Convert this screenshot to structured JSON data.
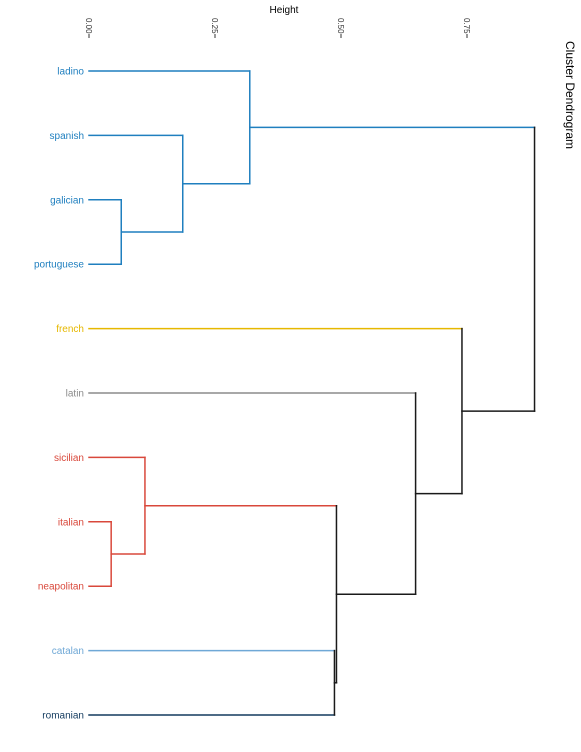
{
  "chart_data": {
    "type": "dendrogram",
    "title": "Cluster Dendrogram",
    "axis_title": "Height",
    "axis_ticks": [
      {
        "value": 0.0,
        "label": "0.00"
      },
      {
        "value": 0.25,
        "label": "0.25"
      },
      {
        "value": 0.5,
        "label": "0.50"
      },
      {
        "value": 0.75,
        "label": "0.75"
      }
    ],
    "height_range": [
      0,
      0.9
    ],
    "leaves": [
      {
        "name": "ladino",
        "color": "#1f7fbf"
      },
      {
        "name": "spanish",
        "color": "#1f7fbf"
      },
      {
        "name": "galician",
        "color": "#1f7fbf"
      },
      {
        "name": "portuguese",
        "color": "#1f7fbf"
      },
      {
        "name": "french",
        "color": "#e6b800"
      },
      {
        "name": "latin",
        "color": "#8c8c8c"
      },
      {
        "name": "sicilian",
        "color": "#d9483b"
      },
      {
        "name": "italian",
        "color": "#d9483b"
      },
      {
        "name": "neapolitan",
        "color": "#d9483b"
      },
      {
        "name": "catalan",
        "color": "#6fa8d6"
      },
      {
        "name": "romanian",
        "color": "#123a5e"
      }
    ],
    "merges": [
      {
        "left": "galician",
        "right": "portuguese",
        "height": 0.064,
        "color": "#1f7fbf"
      },
      {
        "left": "spanish",
        "right": "m1",
        "height": 0.186,
        "color": "#1f7fbf"
      },
      {
        "left": "ladino",
        "right": "m2",
        "height": 0.319,
        "color": "#1f7fbf"
      },
      {
        "left": "italian",
        "right": "neapolitan",
        "height": 0.044,
        "color": "#d9483b"
      },
      {
        "left": "sicilian",
        "right": "m4",
        "height": 0.111,
        "color": "#d9483b"
      },
      {
        "left": "catalan",
        "right": "romanian",
        "height": 0.487,
        "color": "#1a1a1a"
      },
      {
        "left": "m5",
        "right": "m6",
        "height": 0.491,
        "color": "#1a1a1a"
      },
      {
        "left": "latin",
        "right": "m7",
        "height": 0.648,
        "color": "#1a1a1a"
      },
      {
        "left": "french",
        "right": "m8",
        "height": 0.74,
        "color": "#1a1a1a"
      },
      {
        "left": "m3",
        "right": "m9",
        "height": 0.884,
        "color": "#1a1a1a"
      }
    ]
  }
}
